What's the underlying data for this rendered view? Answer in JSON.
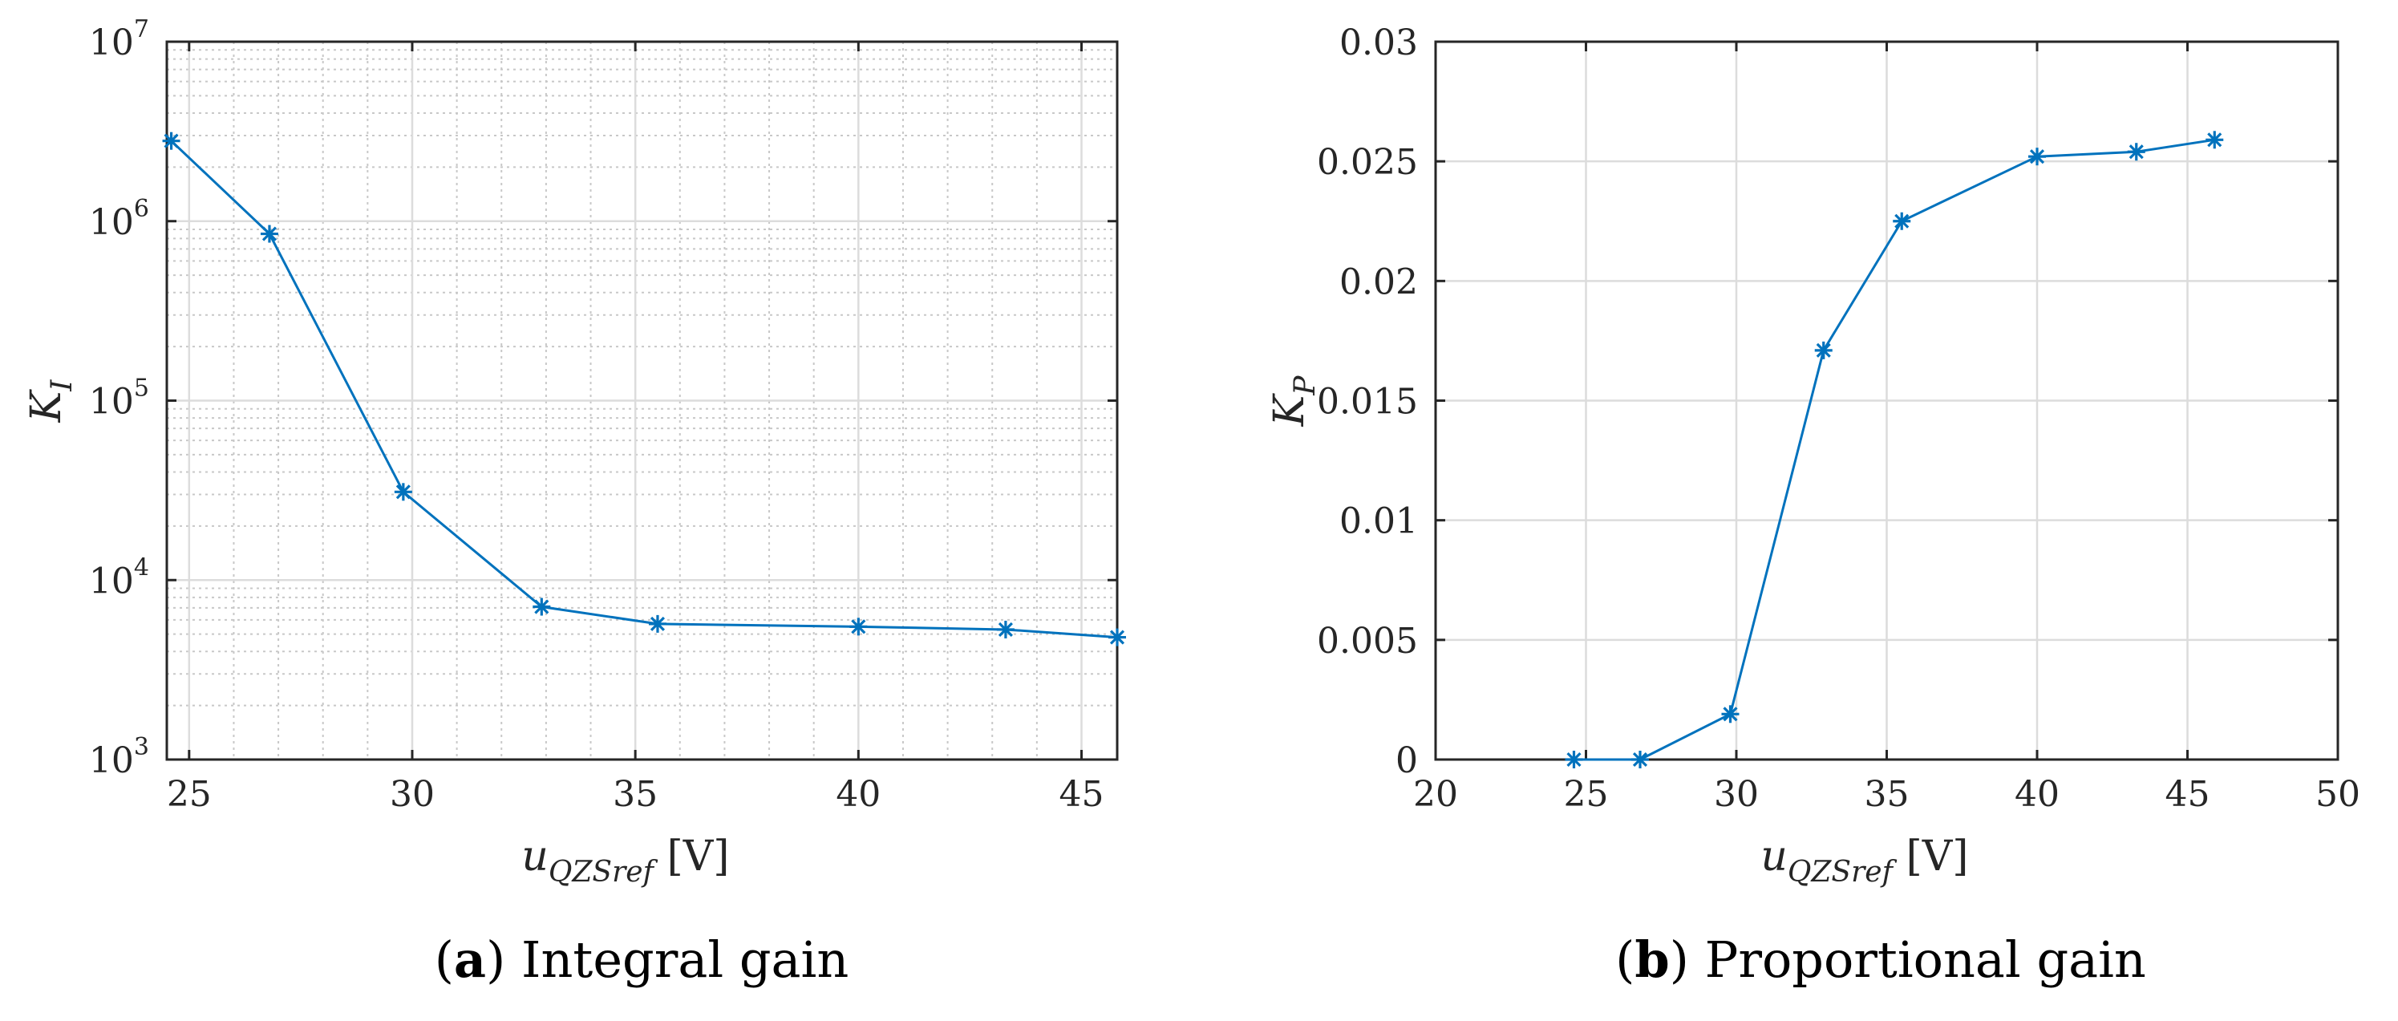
{
  "chart_data": [
    {
      "id": "a",
      "type": "line",
      "yscale": "log",
      "caption_letter": "a",
      "caption_text": "Integral gain",
      "xlabel_main": "u",
      "xlabel_sub": "QZSref",
      "xlabel_unit": "[V]",
      "ylabel_main": "K",
      "ylabel_sub": "I",
      "xlim": [
        24.5,
        45.8
      ],
      "ylim": [
        1000,
        10000000
      ],
      "xticks": [
        25,
        30,
        35,
        40,
        45
      ],
      "xtick_labels": [
        "25",
        "30",
        "35",
        "40",
        "45"
      ],
      "yticks": [
        1000,
        10000,
        100000,
        1000000,
        10000000
      ],
      "ytick_base": [
        "10",
        "10",
        "10",
        "10",
        "10"
      ],
      "ytick_exp": [
        "3",
        "4",
        "5",
        "6",
        "7"
      ],
      "grid": true,
      "minor_grid": true,
      "marker": "asterisk",
      "color": "#0072BD",
      "x": [
        24.6,
        26.8,
        29.8,
        32.9,
        35.5,
        40.0,
        43.3,
        45.8
      ],
      "y": [
        2800000,
        850000,
        31000,
        7100,
        5700,
        5500,
        5300,
        4800
      ]
    },
    {
      "id": "b",
      "type": "line",
      "yscale": "linear",
      "caption_letter": "b",
      "caption_text": "Proportional gain",
      "xlabel_main": "u",
      "xlabel_sub": "QZSref",
      "xlabel_unit": "[V]",
      "ylabel_main": "K",
      "ylabel_sub": "P",
      "xlim": [
        20,
        50
      ],
      "ylim": [
        0,
        0.03
      ],
      "xticks": [
        20,
        25,
        30,
        35,
        40,
        45,
        50
      ],
      "xtick_labels": [
        "20",
        "25",
        "30",
        "35",
        "40",
        "45",
        "50"
      ],
      "yticks": [
        0,
        0.005,
        0.01,
        0.015,
        0.02,
        0.025,
        0.03
      ],
      "ytick_labels": [
        "0",
        "0.005",
        "0.01",
        "0.015",
        "0.02",
        "0.025",
        "0.03"
      ],
      "grid": true,
      "minor_grid": false,
      "marker": "asterisk",
      "color": "#0072BD",
      "x": [
        24.6,
        26.8,
        29.8,
        32.9,
        35.5,
        40.0,
        43.3,
        45.9
      ],
      "y": [
        0.0,
        0.0,
        0.0019,
        0.0171,
        0.0225,
        0.0252,
        0.0254,
        0.0259
      ]
    }
  ]
}
